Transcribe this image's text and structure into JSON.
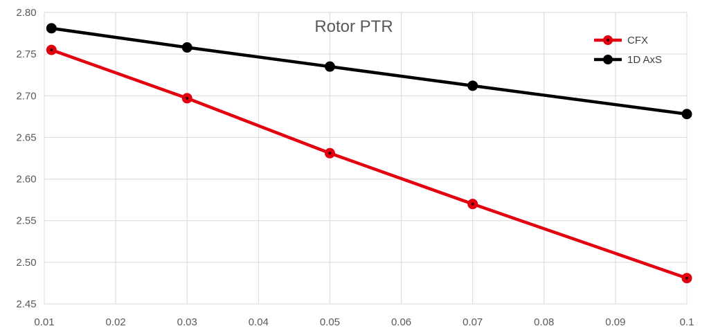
{
  "chart_data": {
    "type": "line",
    "title": "Rotor PTR",
    "xlabel": "",
    "ylabel": "",
    "x_ticks": [
      "0.01",
      "0.02",
      "0.03",
      "0.04",
      "0.05",
      "0.06",
      "0.07",
      "0.08",
      "0.09",
      "0.1"
    ],
    "y_ticks": [
      "2.45",
      "2.50",
      "2.55",
      "2.60",
      "2.65",
      "2.70",
      "2.75",
      "2.80"
    ],
    "xlim": [
      0.01,
      0.1
    ],
    "ylim": [
      2.45,
      2.8
    ],
    "grid": true,
    "legend_position": "top-right",
    "series": [
      {
        "name": "CFX",
        "color": "#e3000f",
        "x": [
          0.011,
          0.03,
          0.05,
          0.07,
          0.1
        ],
        "y": [
          2.755,
          2.697,
          2.631,
          2.57,
          2.481
        ]
      },
      {
        "name": "1D AxS",
        "color": "#000000",
        "x": [
          0.011,
          0.03,
          0.05,
          0.07,
          0.1
        ],
        "y": [
          2.781,
          2.758,
          2.735,
          2.712,
          2.678
        ]
      }
    ]
  }
}
